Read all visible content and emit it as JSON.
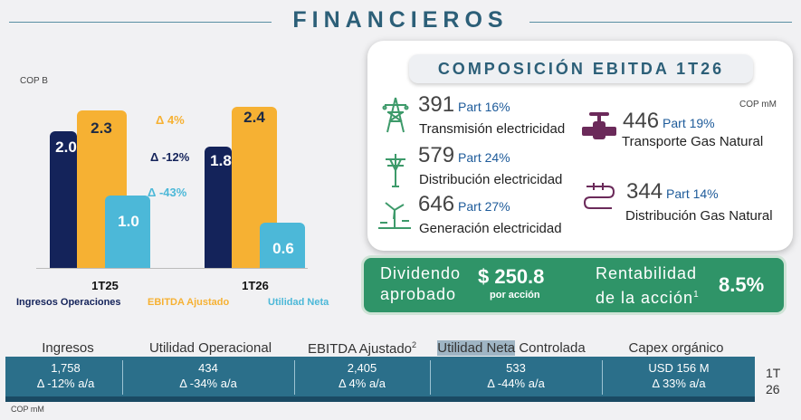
{
  "title": "FINANCIEROS",
  "chart": {
    "unit": "COP B",
    "groups": [
      {
        "label": "1T25",
        "ingresos": "2.0",
        "ebitda": "2.3",
        "utilidad": "1.0"
      },
      {
        "label": "1T26",
        "ingresos": "1.8",
        "ebitda": "2.4",
        "utilidad": "0.6"
      }
    ],
    "deltas": {
      "ebitda": "Δ 4%",
      "ingresos": "Δ -12%",
      "utilidad": "Δ -43%"
    },
    "legend": {
      "ingresos": "Ingresos Operaciones",
      "ebitda": "EBITDA Ajustado",
      "utilidad": "Utilidad Neta"
    },
    "colors": {
      "ingresos": "#14235a",
      "ebitda": "#f6b133",
      "utilidad": "#4cb8d8"
    }
  },
  "chart_data": {
    "type": "bar",
    "categories": [
      "1T25",
      "1T26"
    ],
    "series": [
      {
        "name": "Ingresos Operaciones",
        "values": [
          2.0,
          1.8
        ]
      },
      {
        "name": "EBITDA Ajustado",
        "values": [
          2.3,
          2.4
        ]
      },
      {
        "name": "Utilidad Neta",
        "values": [
          1.0,
          0.6
        ]
      }
    ],
    "ylabel": "COP B",
    "ylim": [
      0,
      2.6
    ]
  },
  "ebitda_card": {
    "title": "COMPOSICIÓN EBITDA 1T26",
    "unit": "COP mM",
    "items": [
      {
        "value": "391",
        "part": "Part 16%",
        "name": "Transmisión electricidad",
        "icon": "transmission-tower-icon"
      },
      {
        "value": "579",
        "part": "Part 24%",
        "name": "Distribución electricidad",
        "icon": "power-pole-icon"
      },
      {
        "value": "646",
        "part": "Part 27%",
        "name": "Generación electricidad",
        "icon": "wind-turbine-icon"
      },
      {
        "value": "446",
        "part": "Part 19%",
        "name": "Transporte Gas Natural",
        "icon": "gas-valve-icon"
      },
      {
        "value": "344",
        "part": "Part 14%",
        "name": "Distribución Gas Natural",
        "icon": "gas-pipe-icon"
      }
    ]
  },
  "dividend": {
    "label_line1": "Dividendo",
    "label_line2": "aprobado",
    "value": "$ 250.8",
    "sub": "por acción",
    "rent_line1": "Rentabilidad",
    "rent_line2": "de la acción",
    "rent_sup": "1",
    "rent_value": "8.5%"
  },
  "table": {
    "headers": [
      "Ingresos",
      "Utilidad Operacional",
      "EBITDA Ajustado",
      "Utilidad Neta Controlada",
      "Capex orgánico"
    ],
    "header_sup": "2",
    "highlight_part": "Utilidad Neta",
    "highlight_rest": " Controlada",
    "values": [
      "1,758",
      "434",
      "2,405",
      "533",
      "USD 156 M"
    ],
    "deltas": [
      "Δ -12% a/a",
      "Δ -34% a/a",
      "Δ 4% a/a",
      "Δ -44% a/a",
      "Δ 33% a/a"
    ],
    "period_line1": "1T",
    "period_line2": "26",
    "unit": "COP mM"
  }
}
